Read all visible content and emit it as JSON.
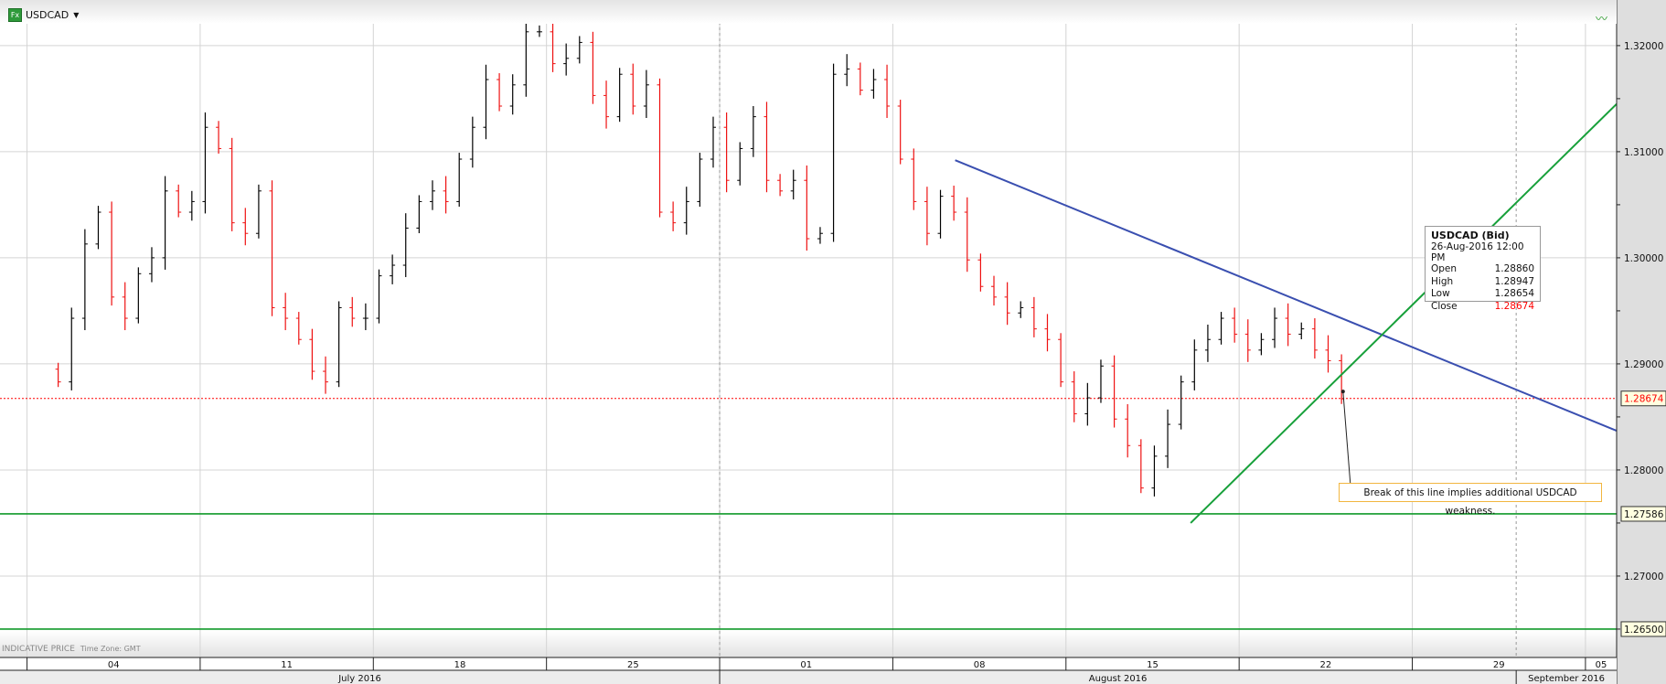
{
  "header": {
    "symbol": "USDCAD",
    "badge": "Fx",
    "dropdown_icon": "caret-down-icon",
    "trend_icon": "trend-up-icon"
  },
  "footer": {
    "indicative": "INDICATIVE PRICE",
    "timezone": "Time Zone: GMT"
  },
  "tooltip": {
    "title": "USDCAD (Bid)",
    "datetime": "26-Aug-2016 12:00 PM",
    "rows": [
      {
        "label": "Open",
        "value": "1.28860"
      },
      {
        "label": "High",
        "value": "1.28947"
      },
      {
        "label": "Low",
        "value": "1.28654"
      },
      {
        "label": "Close",
        "value": "1.28674"
      }
    ]
  },
  "annotation": "Break of this line implies additional USDCAD weakness.",
  "chart_data": {
    "type": "ohlc",
    "symbol": "USDCAD",
    "ylim": [
      1.2631,
      1.3243
    ],
    "y_ticks": [
      "1.32000",
      "1.31000",
      "1.30000",
      "1.29000",
      "1.28000",
      "1.27000"
    ],
    "y_tick_values": [
      1.32,
      1.31,
      1.3,
      1.29,
      1.28,
      1.27
    ],
    "x_unit": "trading days since 04-Jul-2016",
    "xlim": [
      -0.78,
      45.9
    ],
    "week_labels": [
      "04",
      "11",
      "18",
      "25",
      "01",
      "08",
      "15",
      "22",
      "29",
      "05"
    ],
    "week_starts": [
      0,
      5,
      10,
      15,
      20,
      25,
      30,
      35,
      40,
      45
    ],
    "month_labels": [
      {
        "label": "July 2016",
        "from": -0.78,
        "to": 20
      },
      {
        "label": "August 2016",
        "from": 20,
        "to": 43
      },
      {
        "label": "September 2016",
        "from": 43,
        "to": 45.9
      }
    ],
    "month_dividers": [
      20,
      43
    ],
    "first_bar_day": 0.9,
    "bar_step_days": 0.386,
    "first_open": 1.2895,
    "closes": [
      1.2883,
      1.2943,
      1.3013,
      1.3043,
      1.2963,
      1.2943,
      1.2985,
      1.3,
      1.3063,
      1.3043,
      1.3053,
      1.3123,
      1.3103,
      1.3033,
      1.3023,
      1.3063,
      1.2953,
      1.2943,
      1.2923,
      1.2893,
      1.2883,
      1.2953,
      1.2943,
      1.2943,
      1.2983,
      1.2993,
      1.3028,
      1.3053,
      1.3063,
      1.3053,
      1.3093,
      1.3123,
      1.3168,
      1.3143,
      1.3163,
      1.3213,
      1.3213,
      1.3183,
      1.3188,
      1.3203,
      1.3153,
      1.3133,
      1.3173,
      1.3143,
      1.3163,
      1.3043,
      1.3033,
      1.3053,
      1.3093,
      1.3123,
      1.3073,
      1.3103,
      1.3133,
      1.3073,
      1.3063,
      1.3073,
      1.3018,
      1.3023,
      1.3173,
      1.3178,
      1.3158,
      1.3168,
      1.3143,
      1.3093,
      1.3053,
      1.3023,
      1.3058,
      1.3043,
      1.2998,
      1.2973,
      1.2963,
      1.2948,
      1.2953,
      1.2933,
      1.2923,
      1.2883,
      1.2853,
      1.2868,
      1.2898,
      1.2848,
      1.2823,
      1.2783,
      1.2813,
      1.2843,
      1.2883,
      1.2913,
      1.2923,
      1.2943,
      1.2928,
      1.2913,
      1.2923,
      1.2943,
      1.2928,
      1.2933,
      1.2913,
      1.2903,
      1.2867
    ],
    "levels": [
      {
        "name": "last-price",
        "value": 1.28674,
        "label": "1.28674",
        "color": "#ff0000",
        "style": "dotted"
      },
      {
        "name": "support-1",
        "value": 1.27586,
        "label": "1.27586",
        "color": "#119a2a",
        "style": "solid"
      },
      {
        "name": "support-2",
        "value": 1.265,
        "label": "1.26500",
        "color": "#119a2a",
        "style": "solid"
      }
    ],
    "trendlines": [
      {
        "name": "resistance-trendline",
        "color": "#3a4fb0",
        "from": [
          26.8,
          1.3092
        ],
        "to": [
          45.9,
          1.2837
        ]
      },
      {
        "name": "support-trendline",
        "color": "#17a03a",
        "from": [
          33.6,
          1.275
        ],
        "to": [
          45.9,
          1.3145
        ]
      }
    ],
    "callout_point": [
      38.0,
      1.2874
    ],
    "colors": {
      "up": "#000000",
      "down": "#ee1111",
      "grid": "#d4d4d4"
    }
  }
}
